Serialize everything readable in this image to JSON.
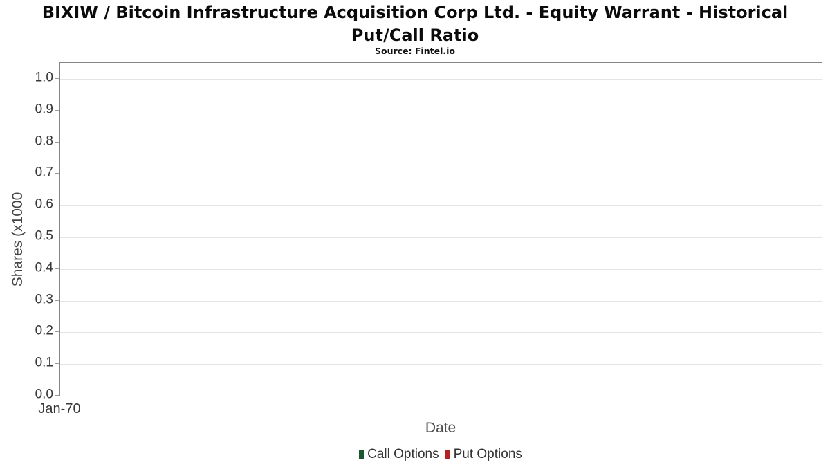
{
  "chart": {
    "title_line1": "BIXIW / Bitcoin Infrastructure Acquisition Corp Ltd. - Equity Warrant - Historical",
    "title_line2": "Put/Call Ratio",
    "subtitle": "Source: Fintel.io",
    "ylabel": "Shares (x1000",
    "xlabel": "Date",
    "x_ticks": [
      "Jan-70"
    ],
    "y_ticks": [
      "0.0",
      "0.1",
      "0.2",
      "0.3",
      "0.4",
      "0.5",
      "0.6",
      "0.7",
      "0.8",
      "0.9",
      "1.0"
    ],
    "legend": [
      {
        "label": "Call Options",
        "color": "#1e5631"
      },
      {
        "label": "Put Options",
        "color": "#b22222"
      }
    ]
  },
  "chart_data": {
    "type": "line",
    "title": "BIXIW / Bitcoin Infrastructure Acquisition Corp Ltd. - Equity Warrant - Historical Put/Call Ratio",
    "subtitle": "Source: Fintel.io",
    "xlabel": "Date",
    "ylabel": "Shares (x1000",
    "x_tick_labels": [
      "Jan-70"
    ],
    "y_tick_values": [
      0.0,
      0.1,
      0.2,
      0.3,
      0.4,
      0.5,
      0.6,
      0.7,
      0.8,
      0.9,
      1.0
    ],
    "ylim": [
      0.0,
      1.05
    ],
    "grid": true,
    "legend_position": "bottom",
    "series": [
      {
        "name": "Call Options",
        "color": "#1e5631",
        "x": [],
        "values": []
      },
      {
        "name": "Put Options",
        "color": "#b22222",
        "x": [],
        "values": []
      }
    ],
    "note": "empty plot area - no data points rendered"
  }
}
